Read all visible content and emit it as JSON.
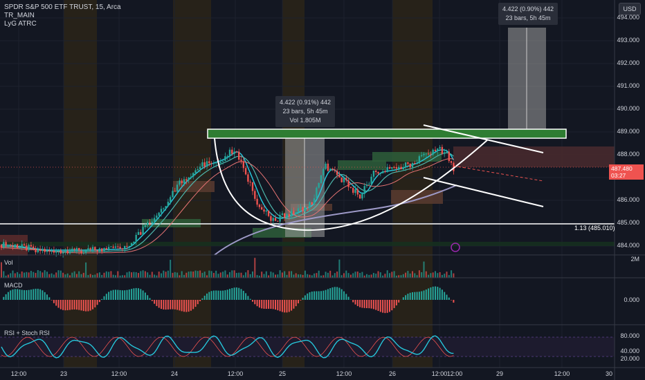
{
  "header": {
    "symbol_line": "SPDR S&P 500 ETF TRUST, 15, Arca",
    "indicator_1": "TR_MAIN",
    "indicator_2": "LyG ATRC"
  },
  "currency_button": "USD",
  "price_axis": [
    "494.000",
    "493.000",
    "492.000",
    "491.000",
    "490.000",
    "489.000",
    "488.000",
    "487.000",
    "486.000",
    "485.000",
    "484.000"
  ],
  "current_price": {
    "value": "487.480",
    "countdown": "03:27"
  },
  "horizontal_line_label": "1.13 (485.010)",
  "tooltip_left": {
    "line1": "4.422 (0.91%) 442",
    "line2": "23 bars, 5h 45m",
    "line3": "Vol 1.805M"
  },
  "tooltip_right": {
    "line1": "4.422 (0.90%) 442",
    "line2": "23 bars, 5h 45m"
  },
  "panes": {
    "volume": {
      "label": "Vol",
      "axis": "2M"
    },
    "macd": {
      "label": "MACD",
      "axis": "0.000"
    },
    "rsi": {
      "label": "RSI + Stoch RSI",
      "axis": [
        "80.000",
        "40.000",
        "20.000"
      ]
    }
  },
  "time_axis": [
    "12:00",
    "23",
    "12:00",
    "24",
    "12:00",
    "25",
    "12:00",
    "26",
    "12:00",
    "12:00",
    "29",
    "12:00",
    "30"
  ],
  "colors": {
    "background": "#131722",
    "up": "#26a69a",
    "down": "#ef5350",
    "resistance_box": "#2e7d32",
    "session_band": "#2a2418",
    "macd_line": "#2196f3",
    "rsi_line": "#26c6da",
    "stoch_line": "#ef5350"
  },
  "chart_data": {
    "type": "candlestick",
    "title": "SPDR S&P 500 ETF TRUST, 15, Arca",
    "ylim": [
      483.7,
      494.6
    ],
    "resistance_level": 488.95,
    "support_level": 485.01,
    "last_price": 487.48
  }
}
